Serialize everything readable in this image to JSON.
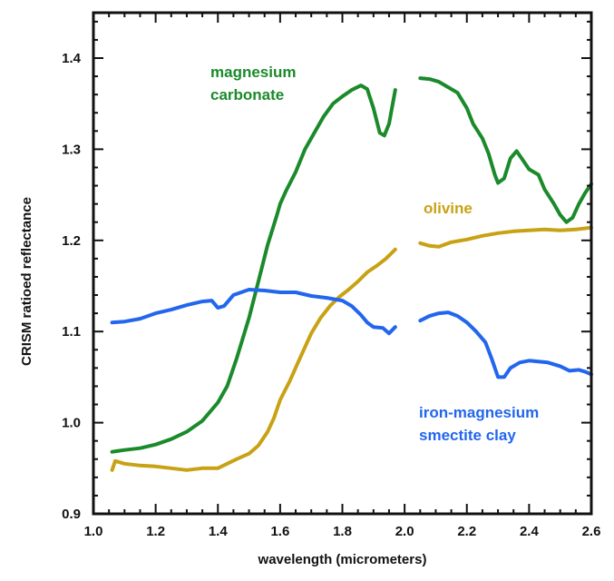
{
  "chart_data": {
    "type": "line",
    "title": "",
    "xlabel": "wavelength (micrometers)",
    "ylabel": "CRISM ratioed reflectance",
    "xlim": [
      1.0,
      2.6
    ],
    "ylim": [
      0.9,
      1.45
    ],
    "grid": false,
    "x_ticks": [
      "1.0",
      "1.2",
      "1.4",
      "1.6",
      "1.8",
      "2.0",
      "2.2",
      "2.4",
      "2.6"
    ],
    "y_ticks": [
      "0.9",
      "1.0",
      "1.1",
      "1.2",
      "1.3",
      "1.4"
    ],
    "legend": "none (inline annotations)",
    "series": [
      {
        "name": "magnesium carbonate",
        "color": "#1a8a2a",
        "label_lines": [
          "magnesium",
          "carbonate"
        ],
        "segments": [
          [
            [
              1.06,
              0.968
            ],
            [
              1.1,
              0.97
            ],
            [
              1.15,
              0.972
            ],
            [
              1.2,
              0.976
            ],
            [
              1.25,
              0.982
            ],
            [
              1.3,
              0.99
            ],
            [
              1.35,
              1.002
            ],
            [
              1.4,
              1.022
            ],
            [
              1.43,
              1.04
            ],
            [
              1.46,
              1.07
            ],
            [
              1.5,
              1.115
            ],
            [
              1.53,
              1.155
            ],
            [
              1.56,
              1.195
            ],
            [
              1.59,
              1.228
            ],
            [
              1.6,
              1.24
            ],
            [
              1.62,
              1.255
            ],
            [
              1.65,
              1.275
            ],
            [
              1.68,
              1.3
            ],
            [
              1.71,
              1.318
            ],
            [
              1.74,
              1.336
            ],
            [
              1.77,
              1.35
            ],
            [
              1.8,
              1.358
            ],
            [
              1.83,
              1.365
            ],
            [
              1.86,
              1.37
            ],
            [
              1.88,
              1.366
            ],
            [
              1.9,
              1.345
            ],
            [
              1.92,
              1.318
            ],
            [
              1.935,
              1.315
            ],
            [
              1.95,
              1.328
            ],
            [
              1.97,
              1.365
            ]
          ],
          [
            [
              2.05,
              1.378
            ],
            [
              2.08,
              1.377
            ],
            [
              2.11,
              1.374
            ],
            [
              2.14,
              1.368
            ],
            [
              2.17,
              1.362
            ],
            [
              2.2,
              1.345
            ],
            [
              2.22,
              1.328
            ],
            [
              2.25,
              1.312
            ],
            [
              2.27,
              1.295
            ],
            [
              2.29,
              1.272
            ],
            [
              2.3,
              1.263
            ],
            [
              2.32,
              1.268
            ],
            [
              2.34,
              1.29
            ],
            [
              2.36,
              1.298
            ],
            [
              2.38,
              1.288
            ],
            [
              2.4,
              1.278
            ],
            [
              2.43,
              1.272
            ],
            [
              2.45,
              1.256
            ],
            [
              2.48,
              1.24
            ],
            [
              2.5,
              1.228
            ],
            [
              2.52,
              1.22
            ],
            [
              2.54,
              1.225
            ],
            [
              2.56,
              1.24
            ],
            [
              2.58,
              1.252
            ],
            [
              2.6,
              1.262
            ]
          ]
        ]
      },
      {
        "name": "olivine",
        "color": "#c8a214",
        "label_lines": [
          "olivine"
        ],
        "segments": [
          [
            [
              1.06,
              0.948
            ],
            [
              1.07,
              0.958
            ],
            [
              1.1,
              0.955
            ],
            [
              1.15,
              0.953
            ],
            [
              1.2,
              0.952
            ],
            [
              1.25,
              0.95
            ],
            [
              1.3,
              0.948
            ],
            [
              1.35,
              0.95
            ],
            [
              1.4,
              0.95
            ],
            [
              1.43,
              0.955
            ],
            [
              1.46,
              0.96
            ],
            [
              1.5,
              0.966
            ],
            [
              1.53,
              0.975
            ],
            [
              1.56,
              0.99
            ],
            [
              1.58,
              1.005
            ],
            [
              1.6,
              1.025
            ],
            [
              1.63,
              1.045
            ],
            [
              1.66,
              1.068
            ],
            [
              1.7,
              1.098
            ],
            [
              1.73,
              1.115
            ],
            [
              1.76,
              1.128
            ],
            [
              1.79,
              1.138
            ],
            [
              1.82,
              1.146
            ],
            [
              1.85,
              1.155
            ],
            [
              1.88,
              1.165
            ],
            [
              1.91,
              1.172
            ],
            [
              1.94,
              1.18
            ],
            [
              1.97,
              1.19
            ]
          ],
          [
            [
              2.05,
              1.197
            ],
            [
              2.08,
              1.194
            ],
            [
              2.11,
              1.193
            ],
            [
              2.15,
              1.198
            ],
            [
              2.2,
              1.201
            ],
            [
              2.25,
              1.205
            ],
            [
              2.3,
              1.208
            ],
            [
              2.35,
              1.21
            ],
            [
              2.4,
              1.211
            ],
            [
              2.45,
              1.212
            ],
            [
              2.5,
              1.211
            ],
            [
              2.55,
              1.212
            ],
            [
              2.6,
              1.214
            ]
          ]
        ]
      },
      {
        "name": "iron-magnesium smectite clay",
        "color": "#2266ee",
        "label_lines": [
          "iron-magnesium",
          "smectite clay"
        ],
        "segments": [
          [
            [
              1.06,
              1.11
            ],
            [
              1.1,
              1.111
            ],
            [
              1.15,
              1.114
            ],
            [
              1.2,
              1.12
            ],
            [
              1.25,
              1.124
            ],
            [
              1.3,
              1.129
            ],
            [
              1.35,
              1.133
            ],
            [
              1.38,
              1.134
            ],
            [
              1.4,
              1.126
            ],
            [
              1.42,
              1.128
            ],
            [
              1.45,
              1.14
            ],
            [
              1.5,
              1.146
            ],
            [
              1.55,
              1.145
            ],
            [
              1.6,
              1.143
            ],
            [
              1.65,
              1.143
            ],
            [
              1.7,
              1.139
            ],
            [
              1.75,
              1.137
            ],
            [
              1.8,
              1.134
            ],
            [
              1.83,
              1.128
            ],
            [
              1.86,
              1.118
            ],
            [
              1.88,
              1.11
            ],
            [
              1.9,
              1.105
            ],
            [
              1.93,
              1.104
            ],
            [
              1.95,
              1.098
            ],
            [
              1.97,
              1.105
            ]
          ],
          [
            [
              2.05,
              1.112
            ],
            [
              2.08,
              1.117
            ],
            [
              2.11,
              1.12
            ],
            [
              2.14,
              1.121
            ],
            [
              2.17,
              1.117
            ],
            [
              2.2,
              1.11
            ],
            [
              2.23,
              1.1
            ],
            [
              2.26,
              1.088
            ],
            [
              2.28,
              1.07
            ],
            [
              2.3,
              1.05
            ],
            [
              2.32,
              1.05
            ],
            [
              2.34,
              1.06
            ],
            [
              2.37,
              1.066
            ],
            [
              2.4,
              1.068
            ],
            [
              2.43,
              1.067
            ],
            [
              2.46,
              1.066
            ],
            [
              2.5,
              1.062
            ],
            [
              2.53,
              1.057
            ],
            [
              2.56,
              1.058
            ],
            [
              2.58,
              1.056
            ],
            [
              2.6,
              1.053
            ]
          ]
        ]
      }
    ]
  }
}
